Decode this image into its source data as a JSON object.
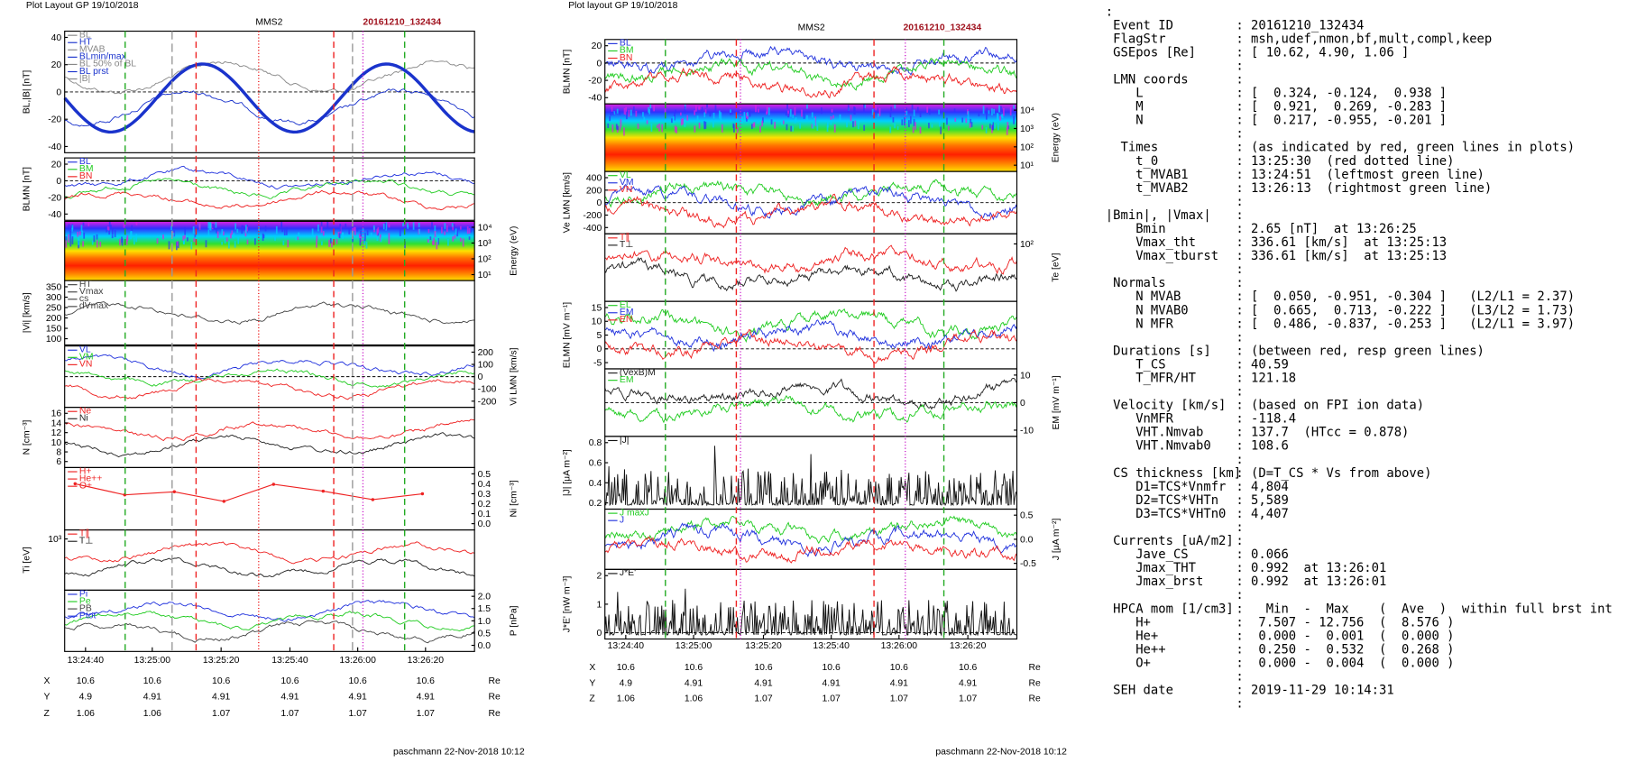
{
  "plots": [
    {
      "layout": "Plot Layout GP 19/10/2018",
      "title": "MMS2",
      "event": "20161210_132434",
      "panels": [
        {
          "type": "line",
          "ylabel": "BL,|B| [nT]",
          "yticks": [
            "40",
            "20",
            "0",
            "-20",
            "-40"
          ],
          "side": "left",
          "legend": [
            "BL",
            "HT",
            "MVAB",
            "BLmin/max",
            "BL 50% of BL",
            "BL prst",
            "|B|"
          ],
          "colors": [
            "#888888",
            "#1a33cc"
          ]
        },
        {
          "type": "line",
          "ylabel": "BLMN [nT]",
          "yticks": [
            "20",
            "0",
            "-20",
            "-40"
          ],
          "side": "left",
          "legend": [
            "BL",
            "BM",
            "BN"
          ],
          "colors": [
            "#2233dd",
            "#22cc22",
            "#ee2222"
          ]
        },
        {
          "type": "spec",
          "ylabel": "Energy (eV)",
          "yticks": [
            "10⁴",
            "10³",
            "10²",
            "10¹"
          ],
          "side": "right"
        },
        {
          "type": "line",
          "ylabel": "|Vi| [km/s]",
          "yticks": [
            "350",
            "300",
            "250",
            "200",
            "150",
            "100"
          ],
          "side": "left",
          "legend": [
            "HT",
            "Vmax",
            "cs",
            "dVmax"
          ],
          "colors": [
            "#444444"
          ]
        },
        {
          "type": "line",
          "ylabel": "Vi LMN [km/s]",
          "yticks": [
            "200",
            "100",
            "0",
            "-100",
            "-200"
          ],
          "side": "right",
          "legend": [
            "VL",
            "VM",
            "VN"
          ],
          "colors": [
            "#2233dd",
            "#22cc22",
            "#ee2222"
          ]
        },
        {
          "type": "line",
          "ylabel": "N [cm⁻³]",
          "yticks": [
            "16",
            "14",
            "12",
            "10",
            "8",
            "6"
          ],
          "side": "left",
          "legend": [
            "Ne",
            "Ni"
          ],
          "colors": [
            "#ee2222",
            "#222222"
          ]
        },
        {
          "type": "dots",
          "ylabel": "Ni [cm⁻³]",
          "yticks": [
            "0.5",
            "0.4",
            "0.3",
            "0.2",
            "0.1",
            "0.0"
          ],
          "side": "right",
          "legend": [
            "H+",
            "He++",
            "O+"
          ],
          "colors": [
            "#ee2222"
          ]
        },
        {
          "type": "line",
          "ylabel": "Ti [eV]",
          "yticks": [
            "10³"
          ],
          "side": "left",
          "legend": [
            "T∥",
            "T⊥"
          ],
          "colors": [
            "#ee2222",
            "#222222"
          ]
        },
        {
          "type": "line",
          "ylabel": "P [nPa]",
          "yticks": [
            "2.0",
            "1.5",
            "1.0",
            "0.5",
            "0.0"
          ],
          "side": "right",
          "legend": [
            "Pi",
            "Pe",
            "PB",
            "Ptot"
          ],
          "colors": [
            "#2233dd",
            "#22cc22",
            "#444444"
          ]
        }
      ],
      "xticks": [
        "13:24:40",
        "13:25:00",
        "13:25:20",
        "13:25:40",
        "13:26:00",
        "13:26:20"
      ],
      "positions": [
        [
          "X",
          "10.6",
          "10.6",
          "10.6",
          "10.6",
          "10.6",
          "10.6",
          "Re"
        ],
        [
          "Y",
          "4.9",
          "4.91",
          "4.91",
          "4.91",
          "4.91",
          "4.91",
          "Re"
        ],
        [
          "Z",
          "1.06",
          "1.06",
          "1.07",
          "1.07",
          "1.07",
          "1.07",
          "Re"
        ]
      ],
      "footer": "paschmann 22-Nov-2018 10:12"
    },
    {
      "layout": "Plot layout GP 19/10/2018",
      "title": "MMS2",
      "event": "20161210_132434",
      "panels": [
        {
          "type": "line",
          "ylabel": "BLMN [nT]",
          "yticks": [
            "20",
            "0",
            "-20",
            "-40"
          ],
          "side": "left",
          "legend": [
            "BL",
            "BM",
            "BN"
          ],
          "colors": [
            "#2233dd",
            "#22cc22",
            "#ee2222"
          ]
        },
        {
          "type": "spec",
          "ylabel": "Energy (eV)",
          "yticks": [
            "10⁴",
            "10³",
            "10²",
            "10¹"
          ],
          "side": "right"
        },
        {
          "type": "line",
          "ylabel": "Ve LMN [km/s]",
          "yticks": [
            "400",
            "200",
            "0",
            "-200",
            "-400"
          ],
          "side": "left",
          "legend": [
            "VL",
            "VM",
            "VN"
          ],
          "colors": [
            "#22cc22",
            "#2233dd",
            "#ee2222"
          ]
        },
        {
          "type": "line",
          "ylabel": "Te [eV]",
          "yticks": [
            "10²"
          ],
          "side": "right",
          "legend": [
            "T∥",
            "T⊥"
          ],
          "colors": [
            "#ee2222",
            "#222222"
          ]
        },
        {
          "type": "line",
          "ylabel": "ELMN [mV m⁻¹]",
          "yticks": [
            "15",
            "10",
            "5",
            "0",
            "-5"
          ],
          "side": "left",
          "legend": [
            "EL",
            "EM",
            "EN"
          ],
          "colors": [
            "#22cc22",
            "#2233dd",
            "#ee2222"
          ]
        },
        {
          "type": "line",
          "ylabel": "EM [mV m⁻¹]",
          "yticks": [
            "10",
            "0",
            "-10"
          ],
          "side": "right",
          "legend": [
            "(VexB)M",
            "EM"
          ],
          "colors": [
            "#222222",
            "#22cc22"
          ]
        },
        {
          "type": "spiky",
          "ylabel": "|J| [μA m⁻²]",
          "yticks": [
            "0.8",
            "0.6",
            "0.4",
            "0.2"
          ],
          "side": "left",
          "legend": [
            "|J|"
          ],
          "colors": [
            "#111111"
          ]
        },
        {
          "type": "line",
          "ylabel": "J [μA m⁻²]",
          "yticks": [
            "0.5",
            "0.0",
            "-0.5"
          ],
          "side": "right",
          "legend": [
            "J maxJ",
            "J"
          ],
          "colors": [
            "#22cc22",
            "#2233dd",
            "#ee2222"
          ]
        },
        {
          "type": "spiky",
          "ylabel": "J*E' [nW m⁻³]",
          "yticks": [
            "2",
            "1",
            "0"
          ],
          "side": "left",
          "legend": [
            "J*E'"
          ],
          "colors": [
            "#111111"
          ]
        }
      ],
      "xticks": [
        "13:24:40",
        "13:25:00",
        "13:25:20",
        "13:25:40",
        "13:26:00",
        "13:26:20"
      ],
      "positions": [
        [
          "X",
          "10.6",
          "10.6",
          "10.6",
          "10.6",
          "10.6",
          "10.6",
          "Re"
        ],
        [
          "Y",
          "4.9",
          "4.91",
          "4.91",
          "4.91",
          "4.91",
          "4.91",
          "Re"
        ],
        [
          "Z",
          "1.06",
          "1.06",
          "1.07",
          "1.07",
          "1.07",
          "1.07",
          "Re"
        ]
      ],
      "footer": "paschmann 22-Nov-2018 10:12"
    }
  ],
  "info": {
    "rows": [
      {
        "label": ":"
      },
      {
        "label": " Event ID",
        "value": ": 20161210_132434"
      },
      {
        "label": " FlagStr",
        "value": ": msh,udef,nmon,bf,mult,compl,keep"
      },
      {
        "label": " GSEpos [Re]",
        "value": ": [ 10.62, 4.90, 1.06 ]"
      },
      {
        "value": ":"
      },
      {
        "label": " LMN coords",
        "value": ":"
      },
      {
        "label": "    L",
        "value": ": [  0.324, -0.124,  0.938 ]"
      },
      {
        "label": "    M",
        "value": ": [  0.921,  0.269, -0.283 ]"
      },
      {
        "label": "    N",
        "value": ": [  0.217, -0.955, -0.201 ]"
      },
      {
        "value": ":"
      },
      {
        "label": "  Times",
        "value": ": (as indicated by red, green lines in plots)"
      },
      {
        "label": "    t_0",
        "value": ": 13:25:30  (red dotted line)"
      },
      {
        "label": "    t_MVAB1",
        "value": ": 13:24:51  (leftmost green line)"
      },
      {
        "label": "    t_MVAB2",
        "value": ": 13:26:13  (rightmost green line)"
      },
      {
        "value": ":"
      },
      {
        "label": "|Bmin|, |Vmax|",
        "value": ":"
      },
      {
        "label": "    Bmin",
        "value": ": 2.65 [nT]  at 13:26:25"
      },
      {
        "label": "    Vmax_tht",
        "value": ": 336.61 [km/s]  at 13:25:13"
      },
      {
        "label": "    Vmax_tburst",
        "value": ": 336.61 [km/s]  at 13:25:13"
      },
      {
        "value": ":"
      },
      {
        "label": " Normals",
        "value": ":"
      },
      {
        "label": "    N MVAB",
        "value": ": [  0.050, -0.951, -0.304 ]   (L2/L1 = 2.37)"
      },
      {
        "label": "    N MVAB0",
        "value": ": [  0.665,  0.713, -0.222 ]   (L3/L2 = 1.73)"
      },
      {
        "label": "    N MFR",
        "value": ": [  0.486, -0.837, -0.253 ]   (L2/L1 = 3.97)"
      },
      {
        "value": ":"
      },
      {
        "label": " Durations [s]",
        "value": ": (between red, resp green lines)"
      },
      {
        "label": "    T_CS",
        "value": ": 40.59"
      },
      {
        "label": "    T_MFR/HT",
        "value": ": 121.18"
      },
      {
        "value": ":"
      },
      {
        "label": " Velocity [km/s]",
        "value": ": (based on FPI ion data)"
      },
      {
        "label": "    VnMFR",
        "value": ": -118.4"
      },
      {
        "label": "    VHT.Nmvab",
        "value": ": 137.7  (HTcc = 0.878)"
      },
      {
        "label": "    VHT.Nmvab0",
        "value": ": 108.6"
      },
      {
        "value": ":"
      },
      {
        "label": " CS thickness [km]",
        "value": ": (D=T_CS * Vs from above)"
      },
      {
        "label": "    D1=TCS*Vnmfr",
        "value": ": 4,804"
      },
      {
        "label": "    D2=TCS*VHTn",
        "value": ": 5,589"
      },
      {
        "label": "    D3=TCS*VHTn0",
        "value": ": 4,407"
      },
      {
        "value": ":"
      },
      {
        "label": " Currents [uA/m2]",
        "value": ":"
      },
      {
        "label": "    Jave_CS",
        "value": ": 0.066"
      },
      {
        "label": "    Jmax_THT",
        "value": ": 0.992  at 13:26:01"
      },
      {
        "label": "    Jmax_brst",
        "value": ": 0.992  at 13:26:01"
      },
      {
        "value": ":"
      },
      {
        "label": " HPCA mom [1/cm3]",
        "value": ":   Min  -  Max    (  Ave  )  within full brst int"
      },
      {
        "label": "    H+",
        "value": ":  7.507 - 12.756  (  8.576 )"
      },
      {
        "label": "    He+",
        "value": ":  0.000 -  0.001  (  0.000 )"
      },
      {
        "label": "    He++",
        "value": ":  0.250 -  0.532  (  0.268 )"
      },
      {
        "label": "    O+",
        "value": ":  0.000 -  0.004  (  0.000 )"
      },
      {
        "value": ":"
      },
      {
        "label": " SEH date",
        "value": ": 2019-11-29 10:14:31"
      },
      {
        "value": ":"
      }
    ]
  }
}
